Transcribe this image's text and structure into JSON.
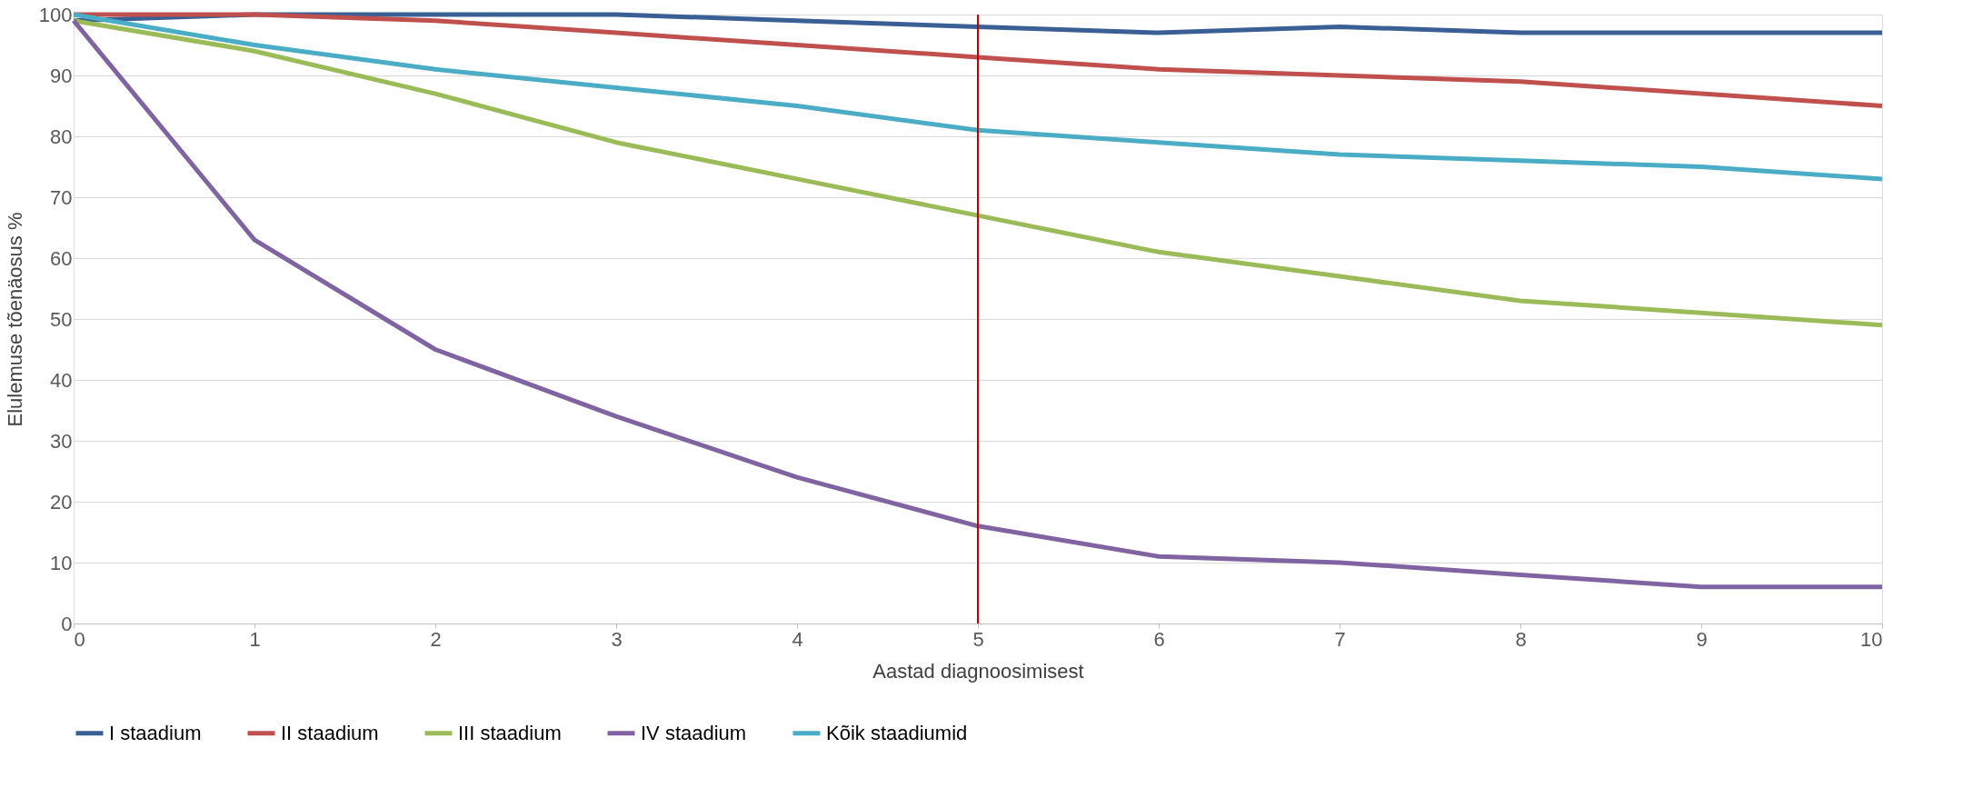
{
  "chart_data": {
    "type": "line",
    "xlabel": "Aastad diagnoosimisest",
    "ylabel": "Elulemuse tõenäosus %",
    "x": [
      0,
      1,
      2,
      3,
      4,
      5,
      6,
      7,
      8,
      9,
      10
    ],
    "series": [
      {
        "name": "I staadium",
        "color": "#3a5f94",
        "values": [
          99,
          100,
          100,
          100,
          99,
          98,
          97,
          98,
          97,
          97,
          97
        ]
      },
      {
        "name": "II staadium",
        "color": "#c0504d",
        "values": [
          100,
          100,
          99,
          97,
          95,
          93,
          91,
          90,
          89,
          87,
          85
        ]
      },
      {
        "name": "III staadium",
        "color": "#9bbb59",
        "values": [
          99,
          94,
          87,
          79,
          73,
          67,
          61,
          57,
          53,
          51,
          49
        ]
      },
      {
        "name": "IV staadium",
        "color": "#8064a2",
        "values": [
          99,
          63,
          45,
          34,
          24,
          16,
          11,
          10,
          8,
          6,
          6
        ]
      },
      {
        "name": "Kõik staadiumid",
        "color": "#4bacc6",
        "values": [
          100,
          95,
          91,
          88,
          85,
          81,
          79,
          77,
          76,
          75,
          73
        ]
      }
    ],
    "xlim": [
      0,
      10
    ],
    "xticks": [
      0,
      1,
      2,
      3,
      4,
      5,
      6,
      7,
      8,
      9,
      10
    ],
    "ylim": [
      0,
      100
    ],
    "yticks": [
      0,
      10,
      20,
      30,
      40,
      50,
      60,
      70,
      80,
      90,
      100
    ],
    "ref_lines": [
      {
        "axis": "x",
        "value": 5,
        "color": "#c00000"
      }
    ],
    "grid": "y",
    "legend": "bottom",
    "marker": "none",
    "line_style": "solid"
  }
}
